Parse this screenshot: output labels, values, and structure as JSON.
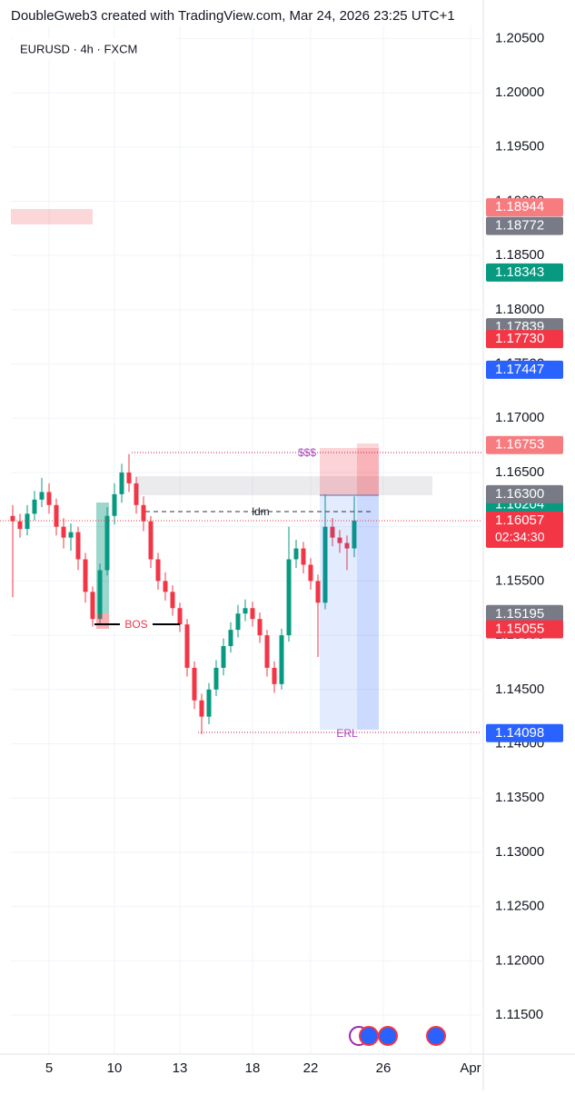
{
  "header": {
    "title": "DoubleGweb3 created with TradingView.com, Mar 24, 2026 23:25 UTC+1",
    "symbol": "EURUSD · 4h · FXCM"
  },
  "chart_data": {
    "type": "candlestick",
    "categories": [
      null,
      null,
      null,
      null,
      null,
      "5",
      null,
      null,
      null,
      null,
      null,
      null,
      null,
      null,
      "10",
      null,
      null,
      null,
      null,
      null,
      null,
      null,
      null,
      "13",
      null,
      null,
      null,
      null,
      null,
      null,
      null,
      null,
      null,
      "18",
      null,
      null,
      null,
      null,
      null,
      null,
      null,
      "22",
      null,
      null,
      null,
      null,
      null,
      null,
      null,
      null,
      null,
      "26",
      null,
      null,
      null,
      null,
      null,
      null,
      null,
      null,
      null,
      null,
      null,
      "Apr",
      null
    ],
    "open": [
      1.161,
      1.1605,
      1.1598,
      1.1612,
      1.1625,
      1.1632,
      1.162,
      1.16,
      1.159,
      1.1595,
      1.157,
      1.154,
      1.1515,
      1.156,
      1.161,
      1.163,
      1.165,
      1.164,
      1.162,
      1.1605,
      1.157,
      1.155,
      1.154,
      1.1525,
      1.151,
      1.147,
      1.144,
      1.1425,
      1.145,
      1.147,
      1.149,
      1.1505,
      1.152,
      1.1525,
      1.1515,
      1.15,
      1.147,
      1.1455,
      1.15,
      1.157,
      1.158,
      1.1565,
      1.155,
      1.153,
      1.16,
      1.159,
      1.1585,
      1.158,
      null,
      null,
      null,
      null,
      null,
      null,
      null,
      null,
      null,
      null,
      null,
      null,
      null,
      null,
      null,
      null,
      null
    ],
    "high": [
      1.162,
      1.1612,
      1.162,
      1.1633,
      1.1645,
      1.164,
      1.1626,
      1.1608,
      1.1603,
      1.16,
      1.1576,
      1.1545,
      1.1566,
      1.1618,
      1.164,
      1.1658,
      1.1667,
      1.1646,
      1.1628,
      1.161,
      1.1576,
      1.1558,
      1.1546,
      1.153,
      1.1515,
      1.1476,
      1.1446,
      1.1456,
      1.1477,
      1.1497,
      1.1512,
      1.1528,
      1.1533,
      1.1531,
      1.1521,
      1.1505,
      1.1476,
      1.1506,
      1.16,
      1.1588,
      1.1586,
      1.1571,
      1.1556,
      1.163,
      1.1608,
      1.1597,
      1.1592,
      1.1628,
      null,
      null,
      null,
      null,
      null,
      null,
      null,
      null,
      null,
      null,
      null,
      null,
      null,
      null,
      null,
      null,
      null
    ],
    "low": [
      1.1535,
      1.159,
      1.1592,
      1.1606,
      1.1618,
      1.1612,
      1.1592,
      1.158,
      1.1578,
      1.156,
      1.153,
      1.1508,
      1.151,
      1.1555,
      1.1602,
      1.1622,
      1.1632,
      1.1612,
      1.1596,
      1.1562,
      1.1542,
      1.1532,
      1.1518,
      1.1503,
      1.1462,
      1.1432,
      1.1409,
      1.1418,
      1.1444,
      1.1463,
      1.1484,
      1.1498,
      1.1513,
      1.1508,
      1.1493,
      1.1462,
      1.1447,
      1.145,
      1.1494,
      1.1562,
      1.1557,
      1.1542,
      1.148,
      1.1524,
      1.1582,
      1.1576,
      1.156,
      1.1572,
      null,
      null,
      null,
      null,
      null,
      null,
      null,
      null,
      null,
      null,
      null,
      null,
      null,
      null,
      null,
      null,
      null
    ],
    "close": [
      1.1605,
      1.1598,
      1.1612,
      1.1625,
      1.1632,
      1.162,
      1.16,
      1.159,
      1.1595,
      1.157,
      1.154,
      1.1515,
      1.156,
      1.161,
      1.163,
      1.165,
      1.164,
      1.162,
      1.1605,
      1.157,
      1.155,
      1.154,
      1.1525,
      1.151,
      1.147,
      1.144,
      1.1425,
      1.145,
      1.147,
      1.149,
      1.1505,
      1.152,
      1.1525,
      1.1515,
      1.15,
      1.147,
      1.1455,
      1.15,
      1.157,
      1.158,
      1.1565,
      1.155,
      1.153,
      1.16,
      1.159,
      1.1585,
      1.158,
      1.16057,
      null,
      null,
      null,
      null,
      null,
      null,
      null,
      null,
      null,
      null,
      null,
      null,
      null,
      null,
      null,
      null,
      null
    ],
    "up_color": "#089981",
    "down_color": "#f23645",
    "ylim": [
      1.1114,
      1.2062
    ],
    "yticks": [
      {
        "value": 1.115,
        "label": "1.11500"
      },
      {
        "value": 1.12,
        "label": "1.12000"
      },
      {
        "value": 1.125,
        "label": "1.12500"
      },
      {
        "value": 1.13,
        "label": "1.13000"
      },
      {
        "value": 1.135,
        "label": "1.13500"
      },
      {
        "value": 1.14,
        "label": "1.14000"
      },
      {
        "value": 1.145,
        "label": "1.14500"
      },
      {
        "value": 1.15,
        "label": "1.15000"
      },
      {
        "value": 1.155,
        "label": "1.15500"
      },
      {
        "value": 1.16,
        "label": "1.16000"
      },
      {
        "value": 1.165,
        "label": "1.16500"
      },
      {
        "value": 1.17,
        "label": "1.17000"
      },
      {
        "value": 1.175,
        "label": "1.17500"
      },
      {
        "value": 1.18,
        "label": "1.18000"
      },
      {
        "value": 1.185,
        "label": "1.18500"
      },
      {
        "value": 1.19,
        "label": "1.19000"
      },
      {
        "value": 1.195,
        "label": "1.19500"
      },
      {
        "value": 1.2,
        "label": "1.20000"
      },
      {
        "value": 1.205,
        "label": "1.20500"
      }
    ],
    "grid": true,
    "price_labels": [
      {
        "value": 1.18944,
        "label": "1.18944",
        "color": "#f77c80"
      },
      {
        "value": 1.18772,
        "label": "1.18772",
        "color": "#787b86"
      },
      {
        "value": 1.18343,
        "label": "1.18343",
        "color": "#089981"
      },
      {
        "value": 1.17839,
        "label": "1.17839",
        "color": "#787b86"
      },
      {
        "value": 1.1773,
        "label": "1.17730",
        "color": "#f23645"
      },
      {
        "value": 1.17447,
        "label": "1.17447",
        "color": "#2962ff"
      },
      {
        "value": 1.16753,
        "label": "1.16753",
        "color": "#f77c80"
      },
      {
        "value": 1.16204,
        "label": "1.16204",
        "color": "#089981"
      },
      {
        "value": 1.163,
        "label": "1.16300",
        "color": "#787b86"
      },
      {
        "value": 1.15195,
        "label": "1.15195",
        "color": "#787b86"
      },
      {
        "value": 1.15055,
        "label": "1.15055",
        "color": "#f23645"
      },
      {
        "value": 1.14098,
        "label": "1.14098",
        "color": "#2962ff"
      },
      {
        "value": 1.16057,
        "label": "1.16057",
        "color": "#f23645"
      }
    ],
    "countdown": "02:34:30",
    "annotations": {
      "liquidity": "$$$",
      "idm": "ldm",
      "bos": "BOS",
      "erl": "ERL"
    }
  }
}
